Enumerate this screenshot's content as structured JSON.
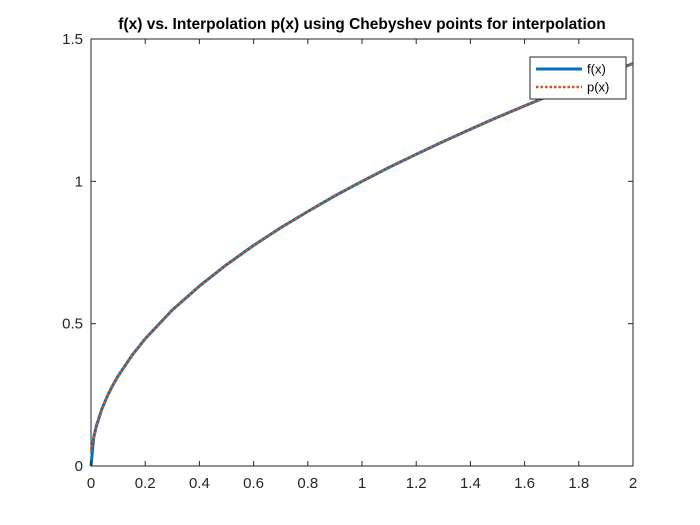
{
  "chart_data": {
    "type": "line",
    "title": "f(x) vs. Interpolation p(x) using Chebyshev points for interpolation",
    "xlabel": "",
    "ylabel": "",
    "xlim": [
      0,
      2
    ],
    "ylim": [
      0,
      1.5
    ],
    "xticks": [
      0,
      0.2,
      0.4,
      0.6,
      0.8,
      1,
      1.2,
      1.4,
      1.6,
      1.8,
      2
    ],
    "xtick_labels": [
      "0",
      "0.2",
      "0.4",
      "0.6",
      "0.8",
      "1",
      "1.2",
      "1.4",
      "1.6",
      "1.8",
      "2"
    ],
    "yticks": [
      0,
      0.5,
      1,
      1.5
    ],
    "ytick_labels": [
      "0",
      "0.5",
      "1",
      "1.5"
    ],
    "grid": false,
    "legend_position": "top-right",
    "series": [
      {
        "name": "f(x)",
        "color": "#0072BD",
        "style": "solid",
        "x": [
          0,
          0.01,
          0.02,
          0.04,
          0.06,
          0.08,
          0.1,
          0.15,
          0.2,
          0.3,
          0.4,
          0.5,
          0.6,
          0.7,
          0.8,
          0.9,
          1.0,
          1.1,
          1.2,
          1.3,
          1.4,
          1.5,
          1.6,
          1.7,
          1.8,
          1.9,
          2.0
        ],
        "y": [
          0,
          0.1,
          0.141,
          0.2,
          0.245,
          0.283,
          0.316,
          0.387,
          0.447,
          0.548,
          0.632,
          0.707,
          0.775,
          0.837,
          0.894,
          0.949,
          1.0,
          1.049,
          1.095,
          1.14,
          1.183,
          1.225,
          1.265,
          1.304,
          1.342,
          1.378,
          1.414
        ]
      },
      {
        "name": "p(x)",
        "color": "#D95319",
        "style": "dotted",
        "x": [
          0,
          0.01,
          0.02,
          0.04,
          0.06,
          0.08,
          0.1,
          0.15,
          0.2,
          0.3,
          0.4,
          0.5,
          0.6,
          0.7,
          0.8,
          0.9,
          1.0,
          1.1,
          1.2,
          1.3,
          1.4,
          1.5,
          1.6,
          1.7,
          1.8,
          1.9,
          2.0
        ],
        "y": [
          0.05,
          0.1,
          0.141,
          0.2,
          0.245,
          0.283,
          0.316,
          0.387,
          0.447,
          0.548,
          0.632,
          0.707,
          0.775,
          0.837,
          0.894,
          0.949,
          1.0,
          1.049,
          1.095,
          1.14,
          1.183,
          1.225,
          1.265,
          1.304,
          1.342,
          1.378,
          1.414
        ]
      }
    ]
  }
}
